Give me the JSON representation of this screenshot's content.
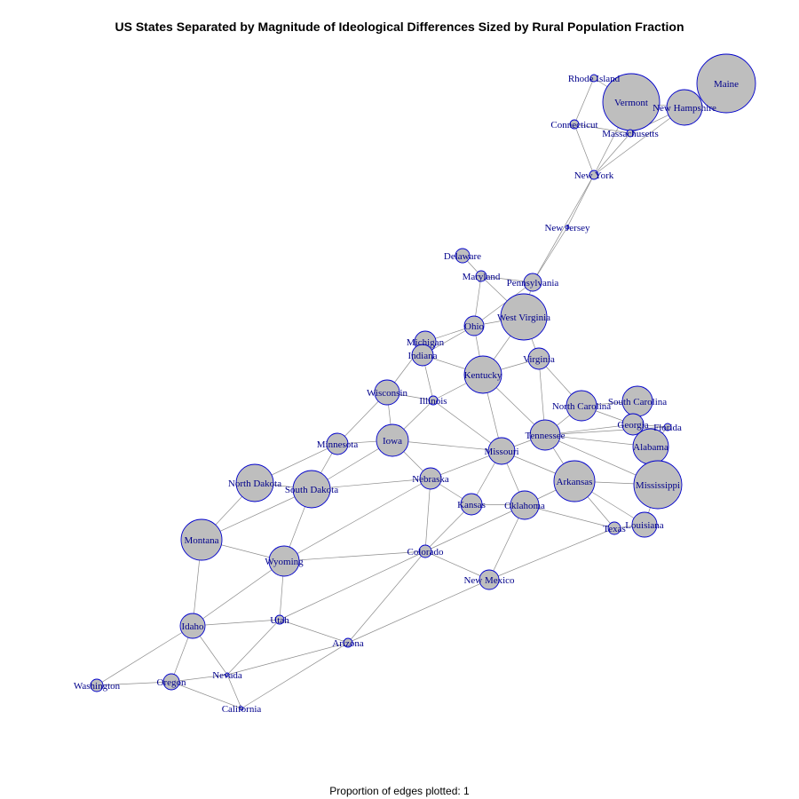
{
  "title": "US States Separated by Magnitude of Ideological Differences Sized by Rural Population Fraction",
  "footer": "Proportion of edges plotted:  1",
  "colors": {
    "node_fill": "#bebebe",
    "node_stroke": "#0000cc",
    "label": "#00008b",
    "edge": "#8c8c8c"
  },
  "nodes": [
    {
      "id": "maine",
      "label": "Maine"
    },
    {
      "id": "vermont",
      "label": "Vermont"
    },
    {
      "id": "new_hampshire",
      "label": "New Hampshire"
    },
    {
      "id": "rhode_island",
      "label": "Rhode Island"
    },
    {
      "id": "connecticut",
      "label": "Connecticut"
    },
    {
      "id": "massachusetts",
      "label": "Massachusetts"
    },
    {
      "id": "new_york",
      "label": "New York"
    },
    {
      "id": "new_jersey",
      "label": "New Jersey"
    },
    {
      "id": "delaware",
      "label": "Delaware"
    },
    {
      "id": "maryland",
      "label": "Maryland"
    },
    {
      "id": "pennsylvania",
      "label": "Pennsylvania"
    },
    {
      "id": "west_virginia",
      "label": "West Virginia"
    },
    {
      "id": "ohio",
      "label": "Ohio"
    },
    {
      "id": "michigan",
      "label": "Michigan"
    },
    {
      "id": "indiana",
      "label": "Indiana"
    },
    {
      "id": "virginia",
      "label": "Virginia"
    },
    {
      "id": "kentucky",
      "label": "Kentucky"
    },
    {
      "id": "wisconsin",
      "label": "Wisconsin"
    },
    {
      "id": "illinois",
      "label": "Illinois"
    },
    {
      "id": "south_carolina",
      "label": "South Carolina"
    },
    {
      "id": "north_carolina",
      "label": "North Carolina"
    },
    {
      "id": "georgia",
      "label": "Georgia"
    },
    {
      "id": "florida",
      "label": "Florida"
    },
    {
      "id": "tennessee",
      "label": "Tennessee"
    },
    {
      "id": "alabama",
      "label": "Alabama"
    },
    {
      "id": "minnesota",
      "label": "Minnesota"
    },
    {
      "id": "iowa",
      "label": "Iowa"
    },
    {
      "id": "missouri",
      "label": "Missouri"
    },
    {
      "id": "north_dakota",
      "label": "North Dakota"
    },
    {
      "id": "south_dakota",
      "label": "South Dakota"
    },
    {
      "id": "nebraska",
      "label": "Nebraska"
    },
    {
      "id": "arkansas",
      "label": "Arkansas"
    },
    {
      "id": "mississippi",
      "label": "Mississippi"
    },
    {
      "id": "kansas",
      "label": "Kansas"
    },
    {
      "id": "oklahoma",
      "label": "Oklahoma"
    },
    {
      "id": "texas",
      "label": "Texas"
    },
    {
      "id": "louisiana",
      "label": "Louisiana"
    },
    {
      "id": "montana",
      "label": "Montana"
    },
    {
      "id": "wyoming",
      "label": "Wyoming"
    },
    {
      "id": "colorado",
      "label": "Colorado"
    },
    {
      "id": "new_mexico",
      "label": "New Mexico"
    },
    {
      "id": "idaho",
      "label": "Idaho"
    },
    {
      "id": "utah",
      "label": "Utah"
    },
    {
      "id": "arizona",
      "label": "Arizona"
    },
    {
      "id": "nevada",
      "label": "Nevada"
    },
    {
      "id": "washington",
      "label": "Washington"
    },
    {
      "id": "oregon",
      "label": "Oregon"
    },
    {
      "id": "california",
      "label": "California"
    }
  ],
  "edges": [
    [
      "rhode_island",
      "vermont"
    ],
    [
      "rhode_island",
      "connecticut"
    ],
    [
      "vermont",
      "new_hampshire"
    ],
    [
      "vermont",
      "massachusetts"
    ],
    [
      "new_hampshire",
      "maine"
    ],
    [
      "new_hampshire",
      "massachusetts"
    ],
    [
      "connecticut",
      "massachusetts"
    ],
    [
      "connecticut",
      "new_york"
    ],
    [
      "massachusetts",
      "new_york"
    ],
    [
      "new_york",
      "new_jersey"
    ],
    [
      "new_york",
      "pennsylvania"
    ],
    [
      "vermont",
      "new_york"
    ],
    [
      "new_hampshire",
      "new_york"
    ],
    [
      "new_jersey",
      "pennsylvania"
    ],
    [
      "delaware",
      "maryland"
    ],
    [
      "maryland",
      "pennsylvania"
    ],
    [
      "maryland",
      "west_virginia"
    ],
    [
      "maryland",
      "ohio"
    ],
    [
      "pennsylvania",
      "west_virginia"
    ],
    [
      "pennsylvania",
      "ohio"
    ],
    [
      "west_virginia",
      "ohio"
    ],
    [
      "west_virginia",
      "kentucky"
    ],
    [
      "west_virginia",
      "virginia"
    ],
    [
      "ohio",
      "michigan"
    ],
    [
      "ohio",
      "kentucky"
    ],
    [
      "michigan",
      "indiana"
    ],
    [
      "indiana",
      "kentucky"
    ],
    [
      "indiana",
      "illinois"
    ],
    [
      "indiana",
      "ohio"
    ],
    [
      "kentucky",
      "virginia"
    ],
    [
      "kentucky",
      "illinois"
    ],
    [
      "kentucky",
      "missouri"
    ],
    [
      "kentucky",
      "tennessee"
    ],
    [
      "virginia",
      "north_carolina"
    ],
    [
      "virginia",
      "tennessee"
    ],
    [
      "wisconsin",
      "michigan"
    ],
    [
      "wisconsin",
      "illinois"
    ],
    [
      "wisconsin",
      "minnesota"
    ],
    [
      "wisconsin",
      "iowa"
    ],
    [
      "illinois",
      "iowa"
    ],
    [
      "illinois",
      "missouri"
    ],
    [
      "north_carolina",
      "south_carolina"
    ],
    [
      "north_carolina",
      "georgia"
    ],
    [
      "north_carolina",
      "tennessee"
    ],
    [
      "south_carolina",
      "georgia"
    ],
    [
      "georgia",
      "florida"
    ],
    [
      "georgia",
      "alabama"
    ],
    [
      "georgia",
      "tennessee"
    ],
    [
      "florida",
      "alabama"
    ],
    [
      "tennessee",
      "alabama"
    ],
    [
      "tennessee",
      "mississippi"
    ],
    [
      "tennessee",
      "arkansas"
    ],
    [
      "tennessee",
      "missouri"
    ],
    [
      "alabama",
      "mississippi"
    ],
    [
      "tennessee",
      "florida"
    ],
    [
      "minnesota",
      "iowa"
    ],
    [
      "minnesota",
      "north_dakota"
    ],
    [
      "minnesota",
      "south_dakota"
    ],
    [
      "iowa",
      "missouri"
    ],
    [
      "iowa",
      "nebraska"
    ],
    [
      "iowa",
      "south_dakota"
    ],
    [
      "missouri",
      "nebraska"
    ],
    [
      "missouri",
      "kansas"
    ],
    [
      "missouri",
      "oklahoma"
    ],
    [
      "missouri",
      "arkansas"
    ],
    [
      "north_dakota",
      "south_dakota"
    ],
    [
      "north_dakota",
      "montana"
    ],
    [
      "south_dakota",
      "nebraska"
    ],
    [
      "south_dakota",
      "montana"
    ],
    [
      "south_dakota",
      "wyoming"
    ],
    [
      "nebraska",
      "kansas"
    ],
    [
      "nebraska",
      "colorado"
    ],
    [
      "nebraska",
      "wyoming"
    ],
    [
      "kansas",
      "oklahoma"
    ],
    [
      "kansas",
      "colorado"
    ],
    [
      "oklahoma",
      "arkansas"
    ],
    [
      "oklahoma",
      "texas"
    ],
    [
      "oklahoma",
      "new_mexico"
    ],
    [
      "oklahoma",
      "colorado"
    ],
    [
      "arkansas",
      "mississippi"
    ],
    [
      "arkansas",
      "louisiana"
    ],
    [
      "arkansas",
      "texas"
    ],
    [
      "mississippi",
      "louisiana"
    ],
    [
      "texas",
      "louisiana"
    ],
    [
      "texas",
      "new_mexico"
    ],
    [
      "montana",
      "wyoming"
    ],
    [
      "montana",
      "idaho"
    ],
    [
      "wyoming",
      "colorado"
    ],
    [
      "wyoming",
      "utah"
    ],
    [
      "wyoming",
      "idaho"
    ],
    [
      "colorado",
      "new_mexico"
    ],
    [
      "colorado",
      "utah"
    ],
    [
      "colorado",
      "arizona"
    ],
    [
      "new_mexico",
      "arizona"
    ],
    [
      "idaho",
      "utah"
    ],
    [
      "idaho",
      "oregon"
    ],
    [
      "idaho",
      "nevada"
    ],
    [
      "idaho",
      "washington"
    ],
    [
      "utah",
      "arizona"
    ],
    [
      "utah",
      "nevada"
    ],
    [
      "arizona",
      "nevada"
    ],
    [
      "arizona",
      "california"
    ],
    [
      "nevada",
      "oregon"
    ],
    [
      "nevada",
      "california"
    ],
    [
      "oregon",
      "california"
    ],
    [
      "oregon",
      "washington"
    ]
  ]
}
